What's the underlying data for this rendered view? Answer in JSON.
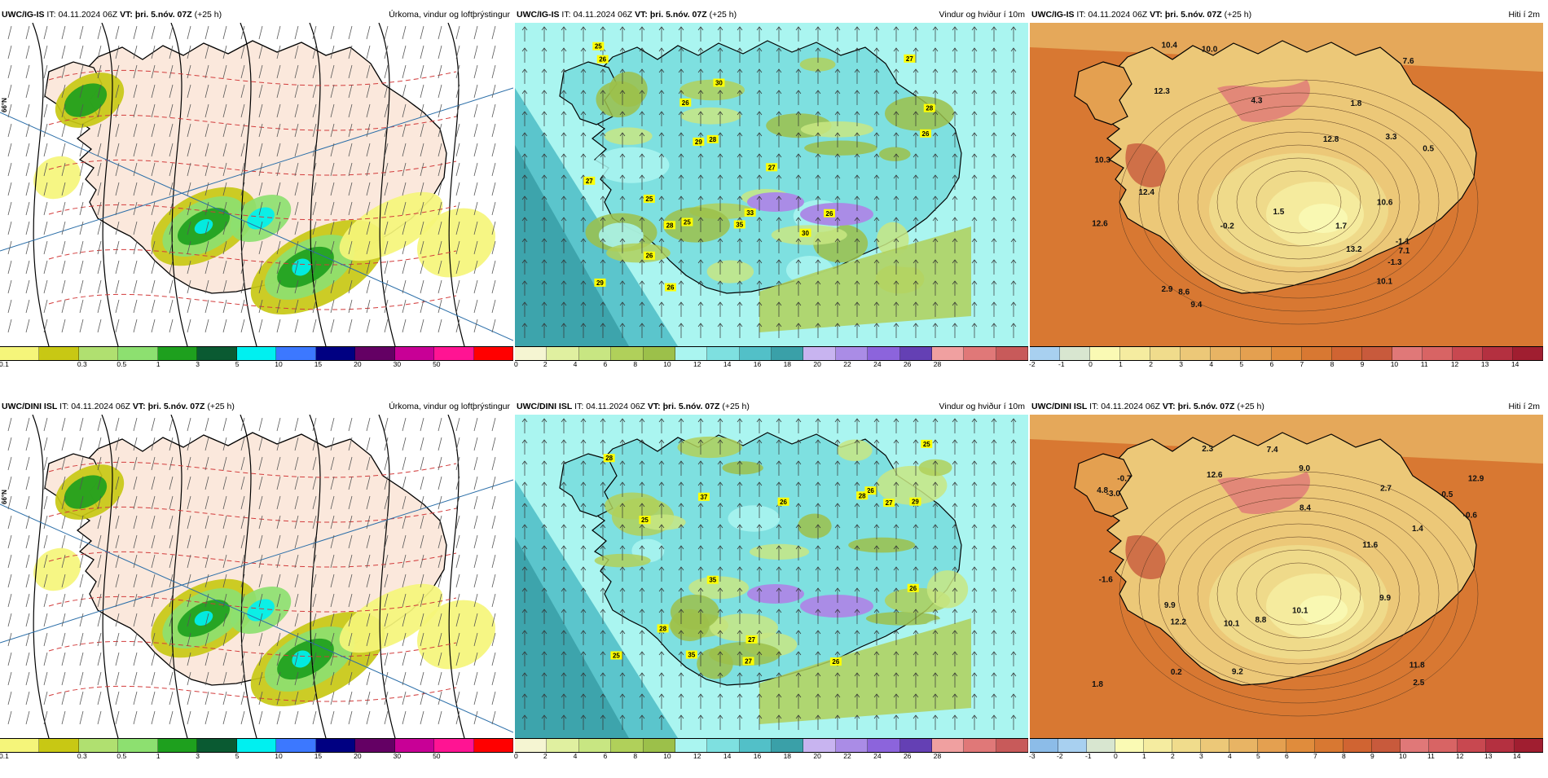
{
  "common": {
    "it_label": "IT:",
    "it_value": "04.11.2024 06Z",
    "vt_label": "VT:",
    "vt_value": "þri. 5.nóv. 07Z",
    "offset": "(+25 h)"
  },
  "rows": [
    {
      "model": "UWC/IG-IS",
      "precip_title": "Úrkoma, vindur og loftþrýstingur",
      "wind_title": "Vindur og hviður í 10m",
      "temp_title": "Hiti í 2m",
      "wind_labels": [
        "26",
        "25",
        "27",
        "27",
        "28",
        "30",
        "30",
        "25",
        "29",
        "26",
        "28",
        "27",
        "26",
        "25",
        "33",
        "29",
        "35",
        "26",
        "26",
        "28",
        "26"
      ],
      "temp_labels": [
        "4.3",
        "10.1",
        "3.3",
        "13.2",
        "12.3",
        "1.7",
        "7.1",
        "9.4",
        "12.8",
        "12.4",
        "-0.2",
        "12.6",
        "10.3",
        "10.6",
        "10.4",
        "-1.1",
        "7.6",
        "1.5",
        "-1.3",
        "0.5",
        "2.9",
        "10.0",
        "8.6",
        "1.8"
      ]
    },
    {
      "model": "UWC/DINI ISL",
      "precip_title": "Úrkoma, vindur og loftþrýstingur",
      "wind_title": "Vindur og hviður í 10m",
      "temp_title": "Hiti í 2m",
      "wind_labels": [
        "25",
        "26",
        "26",
        "27",
        "28",
        "28",
        "29",
        "25",
        "27",
        "27",
        "26",
        "28",
        "26",
        "37",
        "35",
        "35",
        "25"
      ],
      "temp_labels": [
        "7.4",
        "9.0",
        "11.6",
        "9.9",
        "12.9",
        "12.2",
        "9.2",
        "-0.6",
        "-3.0",
        "12.6",
        "11.8",
        "8.4",
        "10.1",
        "0.5",
        "4.8",
        "2.5",
        "10.1",
        "1.4",
        "-0.7",
        "-1.6",
        "2.3",
        "8.8",
        "2.7",
        "9.9",
        "0.2",
        "1.8"
      ]
    }
  ],
  "scales": {
    "precip": {
      "ticks": [
        "0.1",
        "0.3",
        "0.5",
        "1",
        "3",
        "5",
        "10",
        "15",
        "20",
        "30",
        "50"
      ],
      "colors": [
        "#f5f57a",
        "#c8c814",
        "#b0e070",
        "#8de070",
        "#1ea01e",
        "#0a5a32",
        "#00f0f0",
        "#3c78ff",
        "#000082",
        "#640064",
        "#c80096",
        "#ff1493",
        "#ff0000"
      ]
    },
    "wind": {
      "ticks": [
        "0",
        "2",
        "4",
        "6",
        "8",
        "10",
        "12",
        "14",
        "16",
        "18",
        "20",
        "22",
        "24",
        "26",
        "28"
      ],
      "colors": [
        "#f5f5d2",
        "#e0f0a0",
        "#c8e682",
        "#b0d05a",
        "#9cc04a",
        "#aaf5f0",
        "#7ee0e0",
        "#52c0c8",
        "#3aa0a8",
        "#c8b4f0",
        "#aa8ce6",
        "#8c64dc",
        "#6440b4",
        "#f0a0a0",
        "#e07878",
        "#c85a5a"
      ]
    },
    "temp_top": {
      "ticks": [
        "-2",
        "-1",
        "0",
        "1",
        "2",
        "3",
        "4",
        "5",
        "6",
        "7",
        "8",
        "9",
        "10",
        "11",
        "12",
        "13",
        "14"
      ],
      "colors": [
        "#a8d0f0",
        "#d8e6d0",
        "#fafab4",
        "#f5eca0",
        "#f0dc8c",
        "#ecc878",
        "#e8b464",
        "#e4a050",
        "#e08c3c",
        "#d87832",
        "#d06432",
        "#c85a3c",
        "#e07878",
        "#d86464",
        "#c84850",
        "#b43040",
        "#a01e30"
      ]
    },
    "temp_bottom": {
      "ticks": [
        "-3",
        "-2",
        "-1",
        "0",
        "1",
        "2",
        "3",
        "4",
        "5",
        "6",
        "7",
        "8",
        "9",
        "10",
        "11",
        "12",
        "13",
        "14"
      ],
      "colors": [
        "#8cbce8",
        "#a8d0f0",
        "#d8e6d0",
        "#fafab4",
        "#f5eca0",
        "#f0dc8c",
        "#ecc878",
        "#e8b464",
        "#e4a050",
        "#e08c3c",
        "#d87832",
        "#d06432",
        "#c85a3c",
        "#e07878",
        "#d86464",
        "#c84850",
        "#b43040",
        "#a01e30"
      ]
    }
  },
  "map_axis": {
    "lat_label": "66°N"
  },
  "colors": {
    "land_precip": "#fbe8dc",
    "sea_precip": "#ffffff",
    "sea_wind": "#aaf5f0",
    "sea_temp": "#d87832"
  }
}
